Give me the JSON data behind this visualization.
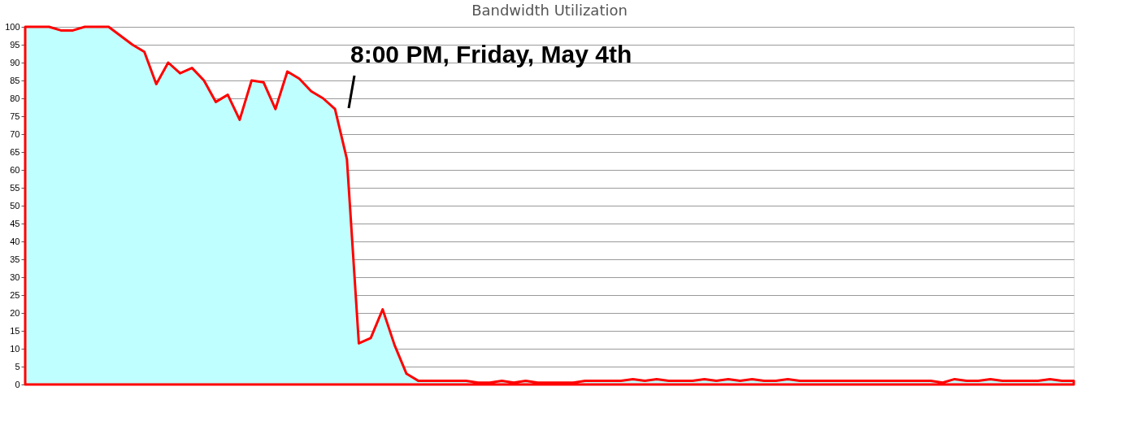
{
  "chart_data": {
    "type": "area",
    "title": "Bandwidth Utilization",
    "categories": [
      null,
      null,
      null,
      null,
      null,
      null,
      null,
      null,
      null,
      null,
      null,
      null,
      null,
      null,
      null,
      null,
      null,
      null,
      null,
      null,
      null,
      null,
      null,
      null,
      null,
      null,
      null,
      null,
      null,
      null,
      null,
      null,
      null,
      null,
      null,
      null,
      null,
      null,
      null,
      null,
      null,
      null,
      null,
      null,
      null,
      null,
      null,
      null,
      null,
      null,
      null,
      null,
      null,
      null,
      null,
      null,
      null,
      null,
      null,
      null,
      null,
      null,
      null,
      null,
      null,
      null,
      null,
      null,
      null,
      null,
      null,
      null,
      null,
      null,
      null,
      null,
      null,
      null,
      null,
      null,
      null,
      null,
      null,
      null,
      null,
      null,
      null,
      null,
      null
    ],
    "series": [
      {
        "color": "#ff0000",
        "values": [
          100,
          100,
          100,
          99,
          99,
          100,
          100,
          100,
          97.5,
          95,
          93,
          84,
          90,
          87,
          88.5,
          85,
          79,
          81,
          74,
          85,
          84.5,
          77,
          87.5,
          85.5,
          82,
          80,
          77,
          63,
          11.5,
          13,
          21,
          11,
          3,
          1,
          1,
          1,
          1,
          1,
          0.5,
          0.5,
          1,
          0.5,
          1,
          0.5,
          0.5,
          0.5,
          0.5,
          1,
          1,
          1,
          1,
          1.5,
          1,
          1.5,
          1,
          1,
          1,
          1.5,
          1,
          1.5,
          1,
          1.5,
          1,
          1,
          1.5,
          1,
          1,
          1,
          1,
          1,
          1,
          1,
          1,
          1,
          1,
          1,
          1,
          0.5,
          1.5,
          1,
          1,
          1.5,
          1,
          1,
          1,
          1,
          1.5,
          1,
          1
        ]
      }
    ],
    "ylim": [
      0,
      100
    ],
    "yticks": [
      0,
      5,
      10,
      15,
      20,
      25,
      30,
      35,
      40,
      45,
      50,
      55,
      60,
      65,
      70,
      75,
      80,
      85,
      90,
      95,
      100
    ],
    "grid": "y",
    "tick_labels": "y",
    "annotations": [
      "8:00 PM, Friday, May 4th"
    ]
  }
}
